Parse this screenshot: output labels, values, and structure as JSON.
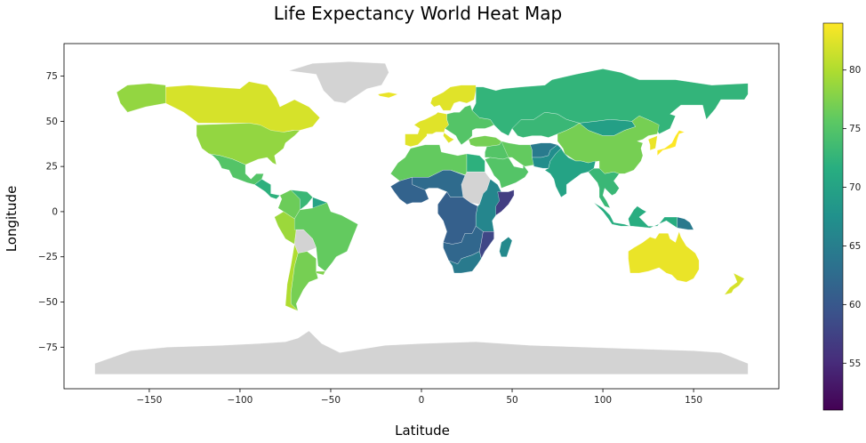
{
  "chart_data": {
    "type": "heatmap",
    "title": "Life Expectancy World Heat Map",
    "xlabel": "Latitude",
    "ylabel": "Longitude",
    "xlim": [
      -197,
      197
    ],
    "ylim": [
      -98,
      93
    ],
    "x_ticks": [
      -150,
      -100,
      -50,
      0,
      50,
      100,
      150
    ],
    "x_tick_labels": [
      "−150",
      "−100",
      "−50",
      "0",
      "50",
      "100",
      "150"
    ],
    "y_ticks": [
      75,
      50,
      25,
      0,
      -25,
      -50,
      -75
    ],
    "y_tick_labels": [
      "75",
      "50",
      "25",
      "0",
      "−25",
      "−50",
      "−75"
    ],
    "grid": false,
    "colorbar": {
      "colormap": "viridis",
      "range": [
        51,
        84
      ],
      "ticks": [
        55,
        60,
        65,
        70,
        75,
        80
      ],
      "tick_labels": [
        "55",
        "60",
        "65",
        "70",
        "75",
        "80"
      ]
    },
    "no_data_color": "#d3d3d3",
    "regions": [
      {
        "name": "Canada",
        "value": 82.0
      },
      {
        "name": "Alaska",
        "value": 78.5
      },
      {
        "name": "United States",
        "value": 78.5
      },
      {
        "name": "Mexico",
        "value": 75.0
      },
      {
        "name": "Central America",
        "value": 72.0
      },
      {
        "name": "Colombia",
        "value": 76.5
      },
      {
        "name": "Venezuela",
        "value": 73.0
      },
      {
        "name": "Guianas",
        "value": 70.0
      },
      {
        "name": "Peru",
        "value": 79.0
      },
      {
        "name": "Brazil",
        "value": 76.0
      },
      {
        "name": "Bolivia",
        "value": null
      },
      {
        "name": "Argentina",
        "value": 77.0
      },
      {
        "name": "Chile",
        "value": 80.0
      },
      {
        "name": "Uruguay",
        "value": 77.5
      },
      {
        "name": "Greenland",
        "value": null
      },
      {
        "name": "Iceland",
        "value": 83.0
      },
      {
        "name": "Scandinavia",
        "value": 82.5
      },
      {
        "name": "Western Europe",
        "value": 82.5
      },
      {
        "name": "Eastern Europe",
        "value": 75.0
      },
      {
        "name": "Russia",
        "value": 72.5
      },
      {
        "name": "Kazakhstan",
        "value": 73.0
      },
      {
        "name": "Mongolia",
        "value": 69.5
      },
      {
        "name": "China",
        "value": 77.0
      },
      {
        "name": "Japan",
        "value": 84.0
      },
      {
        "name": "Korea",
        "value": 83.0
      },
      {
        "name": "Turkey",
        "value": 77.0
      },
      {
        "name": "Middle East",
        "value": 75.0
      },
      {
        "name": "Saudi Arabia",
        "value": 75.0
      },
      {
        "name": "Iran",
        "value": 76.0
      },
      {
        "name": "Afghanistan",
        "value": 64.5
      },
      {
        "name": "Pakistan",
        "value": 67.0
      },
      {
        "name": "India",
        "value": 70.0
      },
      {
        "name": "Southeast Asia",
        "value": 73.0
      },
      {
        "name": "Indonesia",
        "value": 71.5
      },
      {
        "name": "Papua New Guinea",
        "value": 64.5
      },
      {
        "name": "Australia",
        "value": 83.0
      },
      {
        "name": "New Zealand",
        "value": 82.0
      },
      {
        "name": "North Africa",
        "value": 76.0
      },
      {
        "name": "Egypt",
        "value": 72.0
      },
      {
        "name": "Sudan",
        "value": null
      },
      {
        "name": "West Africa",
        "value": 61.5
      },
      {
        "name": "Sahel",
        "value": 62.5
      },
      {
        "name": "Central Africa",
        "value": 61.0
      },
      {
        "name": "East Africa",
        "value": 66.0
      },
      {
        "name": "Somalia",
        "value": 57.0
      },
      {
        "name": "Southern Africa",
        "value": 62.0
      },
      {
        "name": "Mozambique",
        "value": 58.0
      },
      {
        "name": "South Africa",
        "value": 64.5
      },
      {
        "name": "Madagascar",
        "value": 66.5
      },
      {
        "name": "Antarctica",
        "value": null
      }
    ]
  }
}
